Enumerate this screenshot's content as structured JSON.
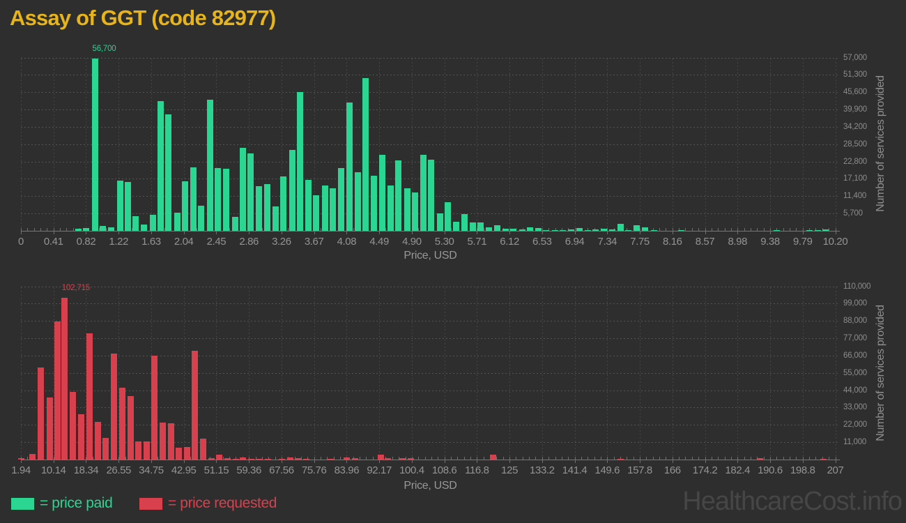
{
  "page": {
    "title": "Assay of GGT (code 82977)",
    "watermark": "HealthcareCost.info",
    "background_color": "#2e2e2e",
    "title_color": "#e7b41a"
  },
  "legend": {
    "items": [
      {
        "label": "= price paid",
        "color": "#2bd592",
        "series": "price_paid"
      },
      {
        "label": "= price requested",
        "color": "#d8404e",
        "series": "price_requested"
      }
    ]
  },
  "chart_data": [
    {
      "type": "bar",
      "series_name": "price paid",
      "color": "#2bd592",
      "xlabel": "Price, USD",
      "ylabel": "Number of services provided",
      "grid": "dotted horizontal and vertical",
      "legend_position": "bottom-left",
      "x_tick_labels": [
        "0",
        "0.41",
        "0.82",
        "1.22",
        "1.63",
        "2.04",
        "2.45",
        "2.86",
        "3.26",
        "3.67",
        "4.08",
        "4.49",
        "4.90",
        "5.30",
        "5.71",
        "6.12",
        "6.53",
        "6.94",
        "7.34",
        "7.75",
        "8.16",
        "8.57",
        "8.98",
        "9.38",
        "9.79",
        "10.20"
      ],
      "x_range": [
        0,
        10.2
      ],
      "y_tick_labels": [
        "5,700",
        "11,400",
        "17,100",
        "22,800",
        "28,500",
        "34,200",
        "39,900",
        "45,600",
        "51,300",
        "57,000"
      ],
      "y_tick_step": 5700,
      "y_axis_max": 57000,
      "peak_annotation": {
        "text": "56,700",
        "x": 0.93,
        "y": 56700
      },
      "bin_width_usd": 0.102,
      "bars": [
        [
          0.72,
          600
        ],
        [
          0.82,
          1000
        ],
        [
          0.93,
          56700
        ],
        [
          1.03,
          1700
        ],
        [
          1.13,
          1200
        ],
        [
          1.24,
          16500
        ],
        [
          1.34,
          16000
        ],
        [
          1.44,
          4900
        ],
        [
          1.54,
          2000
        ],
        [
          1.65,
          5200
        ],
        [
          1.75,
          42600
        ],
        [
          1.85,
          38300
        ],
        [
          1.96,
          5900
        ],
        [
          2.06,
          16300
        ],
        [
          2.16,
          20900
        ],
        [
          2.26,
          8200
        ],
        [
          2.37,
          43100
        ],
        [
          2.47,
          20600
        ],
        [
          2.57,
          20300
        ],
        [
          2.68,
          4600
        ],
        [
          2.78,
          27200
        ],
        [
          2.88,
          25400
        ],
        [
          2.98,
          14600
        ],
        [
          3.09,
          15400
        ],
        [
          3.19,
          8000
        ],
        [
          3.29,
          17800
        ],
        [
          3.4,
          26600
        ],
        [
          3.5,
          45600
        ],
        [
          3.6,
          16800
        ],
        [
          3.7,
          11600
        ],
        [
          3.81,
          15000
        ],
        [
          3.91,
          14100
        ],
        [
          4.01,
          20700
        ],
        [
          4.12,
          42300
        ],
        [
          4.22,
          19200
        ],
        [
          4.32,
          50200
        ],
        [
          4.42,
          18100
        ],
        [
          4.53,
          25100
        ],
        [
          4.63,
          15000
        ],
        [
          4.73,
          23200
        ],
        [
          4.84,
          13900
        ],
        [
          4.94,
          12700
        ],
        [
          5.04,
          24900
        ],
        [
          5.14,
          23500
        ],
        [
          5.25,
          5700
        ],
        [
          5.35,
          9300
        ],
        [
          5.45,
          2900
        ],
        [
          5.56,
          5400
        ],
        [
          5.66,
          2700
        ],
        [
          5.76,
          2700
        ],
        [
          5.86,
          1100
        ],
        [
          5.97,
          1900
        ],
        [
          6.07,
          600
        ],
        [
          6.17,
          700
        ],
        [
          6.28,
          500
        ],
        [
          6.38,
          1100
        ],
        [
          6.48,
          1000
        ],
        [
          6.58,
          250
        ],
        [
          6.69,
          300
        ],
        [
          6.79,
          300
        ],
        [
          6.89,
          450
        ],
        [
          7.0,
          1000
        ],
        [
          7.1,
          300
        ],
        [
          7.2,
          450
        ],
        [
          7.3,
          600
        ],
        [
          7.41,
          450
        ],
        [
          7.51,
          2300
        ],
        [
          7.61,
          150
        ],
        [
          7.71,
          1800
        ],
        [
          7.82,
          1100
        ],
        [
          7.93,
          200
        ],
        [
          8.27,
          150
        ],
        [
          9.47,
          300
        ],
        [
          9.88,
          300
        ],
        [
          9.98,
          300
        ],
        [
          10.08,
          500
        ]
      ]
    },
    {
      "type": "bar",
      "series_name": "price requested",
      "color": "#d8404e",
      "xlabel": "Price, USD",
      "ylabel": "Number of services provided",
      "grid": "dotted horizontal and vertical",
      "legend_position": "bottom-left",
      "x_tick_labels": [
        "1.94",
        "10.14",
        "18.34",
        "26.55",
        "34.75",
        "42.95",
        "51.15",
        "59.36",
        "67.56",
        "75.76",
        "83.96",
        "92.17",
        "100.4",
        "108.6",
        "116.8",
        "125",
        "133.2",
        "141.4",
        "149.6",
        "157.8",
        "166",
        "174.2",
        "182.4",
        "190.6",
        "198.8",
        "207"
      ],
      "x_range": [
        1.94,
        207
      ],
      "y_tick_labels": [
        "11,000",
        "22,000",
        "33,000",
        "44,000",
        "55,000",
        "66,000",
        "77,000",
        "88,000",
        "99,000",
        "110,000"
      ],
      "y_tick_step": 11000,
      "y_axis_max": 110000,
      "peak_annotation": {
        "text": "102,715",
        "x": 12.95,
        "y": 102715
      },
      "bin_width_usd": 2.05,
      "bars": [
        [
          2.0,
          700
        ],
        [
          4.9,
          3500
        ],
        [
          7.0,
          58300
        ],
        [
          9.2,
          39200
        ],
        [
          11.1,
          87500
        ],
        [
          12.95,
          102715
        ],
        [
          15.0,
          42800
        ],
        [
          17.1,
          28800
        ],
        [
          19.2,
          79900
        ],
        [
          21.3,
          23700
        ],
        [
          23.3,
          13700
        ],
        [
          25.4,
          67400
        ],
        [
          27.4,
          45500
        ],
        [
          29.5,
          40200
        ],
        [
          31.5,
          11500
        ],
        [
          33.6,
          11600
        ],
        [
          35.6,
          66100
        ],
        [
          37.7,
          23400
        ],
        [
          39.7,
          23000
        ],
        [
          41.7,
          7400
        ],
        [
          43.8,
          7900
        ],
        [
          45.8,
          68900
        ],
        [
          47.8,
          13100
        ],
        [
          49.9,
          700
        ],
        [
          51.9,
          3200
        ],
        [
          54.0,
          700
        ],
        [
          56.0,
          450
        ],
        [
          57.9,
          1400
        ],
        [
          60.0,
          500
        ],
        [
          62.0,
          300
        ],
        [
          64.1,
          300
        ],
        [
          67.6,
          500
        ],
        [
          69.7,
          1400
        ],
        [
          71.7,
          700
        ],
        [
          73.8,
          200
        ],
        [
          79.9,
          500
        ],
        [
          84.0,
          1500
        ],
        [
          86.0,
          700
        ],
        [
          92.5,
          3000
        ],
        [
          94.4,
          700
        ],
        [
          98.0,
          1100
        ],
        [
          100.1,
          1100
        ],
        [
          120.9,
          2900
        ],
        [
          153.0,
          600
        ],
        [
          188.0,
          800
        ],
        [
          204.0,
          350
        ]
      ]
    }
  ]
}
